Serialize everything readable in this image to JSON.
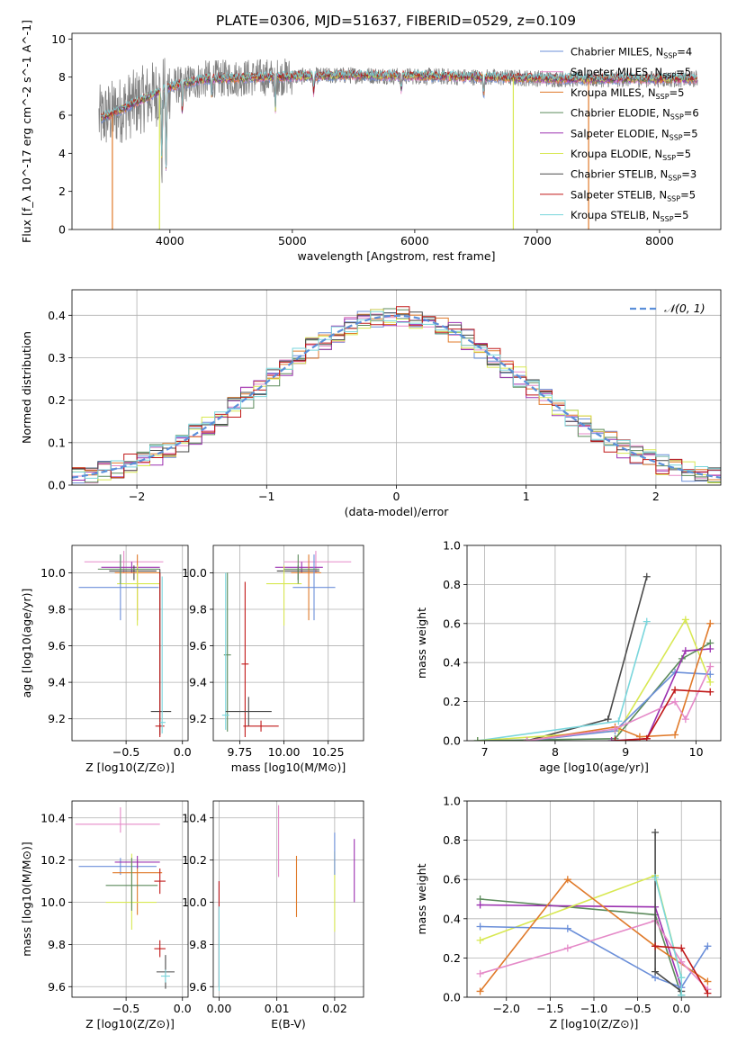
{
  "page_title": "PLATE=0306, MJD=51637, FIBERID=0529, z=0.109",
  "legend": [
    {
      "label": "Chabrier MILES, N",
      "sub": "SSP",
      "suffix": "=4",
      "color": "#6b8fd9"
    },
    {
      "label": "Salpeter MILES, N",
      "sub": "SSP",
      "suffix": "=5",
      "color": "#e58ac8"
    },
    {
      "label": "Kroupa MILES, N",
      "sub": "SSP",
      "suffix": "=5",
      "color": "#e07a2a"
    },
    {
      "label": "Chabrier ELODIE, N",
      "sub": "SSP",
      "suffix": "=6",
      "color": "#5b8a5b"
    },
    {
      "label": "Salpeter ELODIE, N",
      "sub": "SSP",
      "suffix": "=5",
      "color": "#9b30b0"
    },
    {
      "label": "Kroupa ELODIE, N",
      "sub": "SSP",
      "suffix": "=5",
      "color": "#d8e852"
    },
    {
      "label": "Chabrier STELIB, N",
      "sub": "SSP",
      "suffix": "=3",
      "color": "#4a4a4a"
    },
    {
      "label": "Salpeter STELIB, N",
      "sub": "SSP",
      "suffix": "=5",
      "color": "#c01818"
    },
    {
      "label": "Kroupa STELIB, N",
      "sub": "SSP",
      "suffix": "=5",
      "color": "#7ad6dc"
    }
  ],
  "gaussian_label": "𝒩(0, 1)",
  "chart_data": [
    {
      "id": "spectrum",
      "type": "line",
      "xlabel": "wavelength [Angstrom, rest frame]",
      "ylabel": "Flux [f_λ 10^-17 erg cm^-2 s^-1 A^-1]",
      "xlim": [
        3200,
        8500
      ],
      "ylim": [
        0,
        10.3
      ],
      "xticks": [
        4000,
        5000,
        6000,
        7000,
        8000
      ],
      "yticks": [
        0,
        2,
        4,
        6,
        8,
        10
      ],
      "data_range": [
        3420,
        8310
      ],
      "continuum": [
        [
          3420,
          5.8
        ],
        [
          3600,
          6.3
        ],
        [
          3800,
          6.9
        ],
        [
          4000,
          7.5
        ],
        [
          4300,
          7.9
        ],
        [
          4800,
          8.0
        ],
        [
          5500,
          8.1
        ],
        [
          6500,
          8.0
        ],
        [
          7300,
          7.9
        ],
        [
          8300,
          7.9
        ]
      ],
      "absorption": [
        [
          3934,
          3.5
        ],
        [
          3969,
          3.2
        ],
        [
          4102,
          6.1
        ],
        [
          4340,
          7.1
        ],
        [
          4861,
          6.3
        ],
        [
          5175,
          7.2
        ],
        [
          5890,
          7.3
        ],
        [
          6563,
          7.0
        ]
      ],
      "spurious_dips": [
        [
          3530,
          0.0,
          "#e07a2a"
        ],
        [
          3915,
          0.0,
          "#d8e852"
        ],
        [
          6805,
          0.0,
          "#d8e852"
        ],
        [
          7420,
          0.0,
          "#e07a2a"
        ]
      ],
      "grid": false,
      "legend_position": "upper right"
    },
    {
      "id": "residuals",
      "type": "histogram",
      "xlabel": "(data-model)/error",
      "ylabel": "Normed distribution",
      "xlim": [
        -2.5,
        2.5
      ],
      "ylim": [
        0,
        0.46
      ],
      "xticks": [
        -2,
        -1,
        0,
        1,
        2
      ],
      "yticks": [
        0.0,
        0.1,
        0.2,
        0.3,
        0.4
      ],
      "bin_width": 0.1,
      "gaussian_mean": 0,
      "gaussian_sigma": 1,
      "grid": true,
      "legend_position": "upper right"
    },
    {
      "id": "age_vs_Z",
      "type": "errorbar",
      "xlabel": "Z [log10(Z/Z⊙)]",
      "ylabel": "age [log10(age/yr)]",
      "xlim": [
        -0.98,
        0.05
      ],
      "ylim": [
        9.08,
        10.15
      ],
      "xticks": [
        -0.5,
        0.0
      ],
      "yticks": [
        9.2,
        9.4,
        9.6,
        9.8,
        10.0
      ],
      "points": [
        {
          "x": -0.52,
          "xerr": [
            0.35,
            0.35
          ],
          "y": 10.06,
          "yerr": [
            0.06,
            0.06
          ],
          "color": "#e58ac8"
        },
        {
          "x": -0.45,
          "xerr": [
            0.27,
            0.25
          ],
          "y": 10.03,
          "yerr": [
            0.03,
            0.03
          ],
          "color": "#9b30b0"
        },
        {
          "x": -0.43,
          "xerr": [
            0.22,
            0.2
          ],
          "y": 10.01,
          "yerr": [
            0.05,
            0.03
          ],
          "color": "#4a4a4a"
        },
        {
          "x": -0.4,
          "xerr": [
            0.2,
            0.2
          ],
          "y": 10.0,
          "yerr": [
            0.26,
            0.1
          ],
          "color": "#e07a2a"
        },
        {
          "x": -0.4,
          "xerr": [
            0.18,
            0.2
          ],
          "y": 9.94,
          "yerr": [
            0.23,
            0.1
          ],
          "color": "#d8e852"
        },
        {
          "x": -0.55,
          "xerr": [
            0.37,
            0.34
          ],
          "y": 9.92,
          "yerr": [
            0.18,
            0.18
          ],
          "color": "#6b8fd9"
        },
        {
          "x": -0.55,
          "xerr": [
            0.2,
            0.35
          ],
          "y": 10.02,
          "yerr": [
            0.08,
            0.08
          ],
          "color": "#5b8a5b"
        },
        {
          "x": -0.2,
          "xerr": [
            0.08,
            0.1
          ],
          "y": 9.24,
          "yerr": [
            0.13,
            0.78
          ],
          "color": "#4a4a4a"
        },
        {
          "x": -0.2,
          "xerr": [
            0.04,
            0.04
          ],
          "y": 9.16,
          "yerr": [
            0.06,
            0.84
          ],
          "color": "#c01818"
        },
        {
          "x": -0.18,
          "xerr": [
            0.02,
            0.03
          ],
          "y": 9.18,
          "yerr": [
            0.06,
            0.8
          ],
          "color": "#7ad6dc"
        }
      ],
      "grid": true
    },
    {
      "id": "age_vs_mass",
      "type": "errorbar",
      "xlabel": "mass [log10(M/M⊙)]",
      "ylabel": "",
      "xlim": [
        9.6,
        10.45
      ],
      "ylim": [
        9.08,
        10.15
      ],
      "xticks": [
        9.75,
        10.0,
        10.25
      ],
      "yticks": [
        9.2,
        9.4,
        9.6,
        9.8,
        10.0
      ],
      "points": [
        {
          "x": 10.18,
          "xerr": [
            0.18,
            0.2
          ],
          "y": 10.06,
          "yerr": [
            0.06,
            0.06
          ],
          "color": "#e58ac8"
        },
        {
          "x": 10.1,
          "xerr": [
            0.15,
            0.12
          ],
          "y": 10.03,
          "yerr": [
            0.03,
            0.03
          ],
          "color": "#9b30b0"
        },
        {
          "x": 10.08,
          "xerr": [
            0.12,
            0.12
          ],
          "y": 10.01,
          "yerr": [
            0.05,
            0.03
          ],
          "color": "#4a4a4a"
        },
        {
          "x": 10.14,
          "xerr": [
            0.1,
            0.07
          ],
          "y": 10.0,
          "yerr": [
            0.26,
            0.1
          ],
          "color": "#e07a2a"
        },
        {
          "x": 10.0,
          "xerr": [
            0.1,
            0.1
          ],
          "y": 9.94,
          "yerr": [
            0.23,
            0.1
          ],
          "color": "#d8e852"
        },
        {
          "x": 10.17,
          "xerr": [
            0.12,
            0.12
          ],
          "y": 9.92,
          "yerr": [
            0.18,
            0.18
          ],
          "color": "#6b8fd9"
        },
        {
          "x": 10.08,
          "xerr": [
            0.08,
            0.12
          ],
          "y": 10.02,
          "yerr": [
            0.08,
            0.08
          ],
          "color": "#5b8a5b"
        },
        {
          "x": 9.68,
          "xerr": [
            0.02,
            0.02
          ],
          "y": 9.55,
          "yerr": [
            0.42,
            0.45
          ],
          "color": "#5b8a5b"
        },
        {
          "x": 9.67,
          "xerr": [
            0.02,
            0.02
          ],
          "y": 9.22,
          "yerr": [
            0.08,
            0.78
          ],
          "color": "#7ad6dc"
        },
        {
          "x": 9.78,
          "xerr": [
            0.02,
            0.02
          ],
          "y": 9.5,
          "yerr": [
            0.4,
            0.45
          ],
          "color": "#c01818"
        },
        {
          "x": 9.8,
          "xerr": [
            0.13,
            0.13
          ],
          "y": 9.24,
          "yerr": [
            0.08,
            0.08
          ],
          "color": "#4a4a4a"
        },
        {
          "x": 9.87,
          "xerr": [
            0.1,
            0.1
          ],
          "y": 9.16,
          "yerr": [
            0.03,
            0.03
          ],
          "color": "#c01818"
        }
      ],
      "grid": true
    },
    {
      "id": "mass_weight_vs_age",
      "type": "line",
      "xlabel": "age [log10(age/yr)]",
      "ylabel": "mass weight",
      "xlim": [
        6.75,
        10.35
      ],
      "ylim": [
        0,
        1.0
      ],
      "xticks": [
        7,
        8,
        9,
        10
      ],
      "yticks": [
        0.0,
        0.2,
        0.4,
        0.6,
        0.8,
        1.0
      ],
      "series": [
        {
          "color": "#4a4a4a",
          "x": [
            7.6,
            8.75,
            9.3
          ],
          "y": [
            0.0,
            0.11,
            0.84
          ]
        },
        {
          "color": "#7ad6dc",
          "x": [
            6.9,
            8.9,
            9.3
          ],
          "y": [
            0.0,
            0.1,
            0.61
          ]
        },
        {
          "color": "#d8e852",
          "x": [
            6.9,
            8.9,
            9.85,
            10.2
          ],
          "y": [
            0.0,
            0.05,
            0.62,
            0.3
          ]
        },
        {
          "color": "#5b8a5b",
          "x": [
            6.9,
            8.85,
            9.8,
            10.2
          ],
          "y": [
            0.0,
            0.01,
            0.42,
            0.5
          ]
        },
        {
          "color": "#6b8fd9",
          "x": [
            7.6,
            8.85,
            9.7,
            10.2
          ],
          "y": [
            0.0,
            0.05,
            0.35,
            0.34
          ]
        },
        {
          "color": "#9b30b0",
          "x": [
            8.8,
            9.3,
            9.85,
            10.2
          ],
          "y": [
            0.0,
            0.01,
            0.46,
            0.47
          ]
        },
        {
          "color": "#e07a2a",
          "x": [
            7.6,
            8.85,
            9.2,
            9.7,
            10.2
          ],
          "y": [
            0.0,
            0.07,
            0.02,
            0.03,
            0.6
          ]
        },
        {
          "color": "#e58ac8",
          "x": [
            7.6,
            8.85,
            9.7,
            9.85,
            10.2
          ],
          "y": [
            0.0,
            0.06,
            0.2,
            0.11,
            0.38
          ]
        },
        {
          "color": "#c01818",
          "x": [
            8.85,
            9.3,
            9.7,
            10.2
          ],
          "y": [
            0.0,
            0.01,
            0.26,
            0.25
          ]
        }
      ],
      "grid": true
    },
    {
      "id": "mass_vs_Z",
      "type": "errorbar",
      "xlabel": "Z [log10(Z/Z⊙)]",
      "ylabel": "mass [log10(M/M⊙)]",
      "xlim": [
        -0.98,
        0.05
      ],
      "ylim": [
        9.55,
        10.48
      ],
      "xticks": [
        -0.5,
        0.0
      ],
      "yticks": [
        9.6,
        9.8,
        10.0,
        10.2,
        10.4
      ],
      "points": [
        {
          "x": -0.55,
          "xerr": [
            0.4,
            0.35
          ],
          "y": 10.37,
          "yerr": [
            0.04,
            0.08
          ],
          "color": "#e58ac8"
        },
        {
          "x": -0.55,
          "xerr": [
            0.37,
            0.32
          ],
          "y": 10.17,
          "yerr": [
            0.04,
            0.04
          ],
          "color": "#6b8fd9"
        },
        {
          "x": -0.4,
          "xerr": [
            0.22,
            0.22
          ],
          "y": 10.14,
          "yerr": [
            0.2,
            0.06
          ],
          "color": "#e07a2a"
        },
        {
          "x": -0.4,
          "xerr": [
            0.2,
            0.2
          ],
          "y": 10.19,
          "yerr": [
            0.03,
            0.03
          ],
          "color": "#9b30b0"
        },
        {
          "x": -0.45,
          "xerr": [
            0.23,
            0.22
          ],
          "y": 10.0,
          "yerr": [
            0.13,
            0.23
          ],
          "color": "#d8e852"
        },
        {
          "x": -0.45,
          "xerr": [
            0.23,
            0.23
          ],
          "y": 10.08,
          "yerr": [
            0.12,
            0.13
          ],
          "color": "#5b8a5b"
        },
        {
          "x": -0.2,
          "xerr": [
            0.05,
            0.05
          ],
          "y": 10.1,
          "yerr": [
            0.06,
            0.06
          ],
          "color": "#c01818"
        },
        {
          "x": -0.2,
          "xerr": [
            0.05,
            0.05
          ],
          "y": 9.78,
          "yerr": [
            0.04,
            0.04
          ],
          "color": "#c01818"
        },
        {
          "x": -0.15,
          "xerr": [
            0.08,
            0.08
          ],
          "y": 9.67,
          "yerr": [
            0.08,
            0.08
          ],
          "color": "#4a4a4a"
        },
        {
          "x": -0.15,
          "xerr": [
            0.04,
            0.04
          ],
          "y": 9.65,
          "yerr": [
            0.03,
            0.03
          ],
          "color": "#7ad6dc"
        }
      ],
      "grid": true
    },
    {
      "id": "mass_vs_EBV",
      "type": "errorbar",
      "xlabel": "E(B-V)",
      "ylabel": "",
      "xlim": [
        -0.001,
        0.025
      ],
      "ylim": [
        9.55,
        10.48
      ],
      "xticks": [
        0.0,
        0.01,
        0.02
      ],
      "yticks": [
        9.6,
        9.8,
        10.0,
        10.2,
        10.4
      ],
      "points": [
        {
          "x": 0.0,
          "y": 9.7,
          "yerr": [
            0.1,
            0.4
          ],
          "color": "#6b8fd9"
        },
        {
          "x": 0.0,
          "y": 9.85,
          "yerr": [
            0.25,
            0.25
          ],
          "color": "#c01818"
        },
        {
          "x": 0.0,
          "y": 9.78,
          "yerr": [
            0.2,
            0.2
          ],
          "color": "#7ad6dc"
        },
        {
          "x": 0.0103,
          "y": 10.29,
          "yerr": [
            0.17,
            0.17
          ],
          "color": "#e58ac8"
        },
        {
          "x": 0.0134,
          "y": 10.08,
          "yerr": [
            0.15,
            0.14
          ],
          "color": "#e07a2a"
        },
        {
          "x": 0.02,
          "y": 10.05,
          "yerr": [
            0.19,
            0.19
          ],
          "color": "#d8e852"
        },
        {
          "x": 0.02,
          "y": 10.2,
          "yerr": [
            0.07,
            0.13
          ],
          "color": "#6b8fd9"
        },
        {
          "x": 0.0234,
          "y": 10.15,
          "yerr": [
            0.15,
            0.15
          ],
          "color": "#9b30b0"
        }
      ],
      "grid": true
    },
    {
      "id": "mass_weight_vs_Z",
      "type": "line",
      "xlabel": "Z [log10(Z/Z⊙)]",
      "ylabel": "mass weight",
      "xlim": [
        -2.45,
        0.45
      ],
      "ylim": [
        0,
        1.0
      ],
      "xticks": [
        -2.0,
        -1.5,
        -1.0,
        -0.5,
        0.0
      ],
      "yticks": [
        0.0,
        0.2,
        0.4,
        0.6,
        0.8,
        1.0
      ],
      "series": [
        {
          "color": "#5b8a5b",
          "x": [
            -2.3,
            -0.3,
            0.0
          ],
          "y": [
            0.5,
            0.42,
            0.01
          ]
        },
        {
          "color": "#9b30b0",
          "x": [
            -2.3,
            -0.3,
            0.0
          ],
          "y": [
            0.47,
            0.46,
            0.05
          ]
        },
        {
          "color": "#d8e852",
          "x": [
            -2.3,
            -0.3,
            0.0
          ],
          "y": [
            0.29,
            0.62,
            0.1
          ]
        },
        {
          "color": "#6b8fd9",
          "x": [
            -2.3,
            -1.3,
            -0.3,
            0.0,
            0.3
          ],
          "y": [
            0.36,
            0.35,
            0.1,
            0.05,
            0.26
          ]
        },
        {
          "color": "#e07a2a",
          "x": [
            -2.3,
            -1.3,
            -0.3,
            0.3
          ],
          "y": [
            0.03,
            0.6,
            0.26,
            0.08
          ]
        },
        {
          "color": "#e58ac8",
          "x": [
            -2.3,
            -1.3,
            -0.3,
            0.0,
            0.3
          ],
          "y": [
            0.12,
            0.25,
            0.39,
            0.18,
            0.04
          ]
        },
        {
          "color": "#4a4a4a",
          "x": [
            -0.3,
            -0.3,
            0.0
          ],
          "y": [
            0.84,
            0.13,
            0.03
          ]
        },
        {
          "color": "#7ad6dc",
          "x": [
            -0.3,
            0.0,
            0.0
          ],
          "y": [
            0.61,
            0.1,
            0.01
          ]
        },
        {
          "color": "#c01818",
          "x": [
            -0.3,
            0.0,
            0.3
          ],
          "y": [
            0.26,
            0.25,
            0.02
          ]
        }
      ],
      "grid": true
    }
  ]
}
